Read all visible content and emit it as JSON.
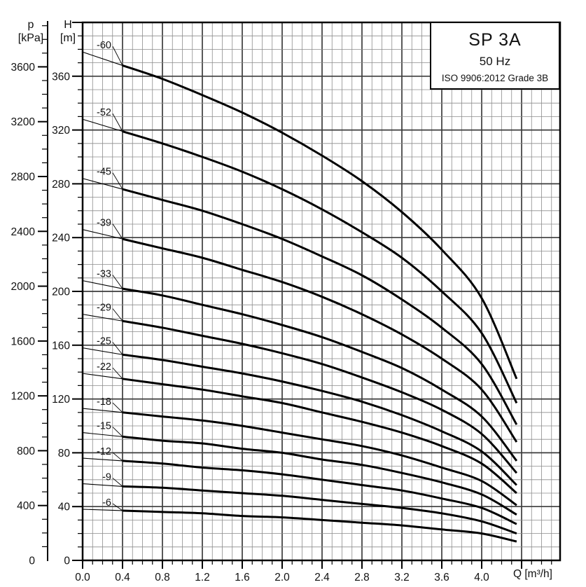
{
  "axes_headers": {
    "pressure_symbol": "p",
    "pressure_unit": "[kPa]",
    "head_symbol": "H",
    "head_unit": "[m]"
  },
  "title_box": {
    "model": "SP 3A",
    "frequency": "50 Hz",
    "standard": "ISO 9906:2012 Grade 3B"
  },
  "chart_data": {
    "type": "line",
    "title": "SP 3A 50 Hz pump performance curves (head vs flow)",
    "xlabel": "Q [m³/h]",
    "ylabel_outer": "p [kPa]",
    "ylabel_inner": "H [m]",
    "grid": "major+minor",
    "legend_position": "labels-on-curves",
    "xlim": [
      0,
      4.78
    ],
    "x_major_step": 0.4,
    "x_minor_step": 0.1,
    "x_last_major_tick": 4.4,
    "head_axis_lim_m": [
      0,
      400
    ],
    "head_major_step_m": 40,
    "head_minor_step_m": 10,
    "pressure_axis_lim_kPa": [
      0,
      3923
    ],
    "pressure_major_step_kPa": 400,
    "pressure_minor_step_kPa": 100,
    "x_tick_labels": [
      "0.0",
      "0.4",
      "0.8",
      "1.2",
      "1.6",
      "2.0",
      "2.4",
      "2.8",
      "3.2",
      "3.6",
      "4.0"
    ],
    "pressure_tick_labels": [
      "0",
      "400",
      "800",
      "1200",
      "1600",
      "2000",
      "2400",
      "2800",
      "3200",
      "3600"
    ],
    "head_tick_labels": [
      "0",
      "40",
      "80",
      "120",
      "160",
      "200",
      "240",
      "280",
      "320",
      "360"
    ],
    "flow_m3h": [
      0,
      0.4,
      0.8,
      1.2,
      1.6,
      2.0,
      2.4,
      2.8,
      3.2,
      3.6,
      4.0,
      4.35
    ],
    "thin_segment_end_flow": 0.4,
    "curves": [
      {
        "label": "-60",
        "stages": 60,
        "head_m": [
          378,
          368,
          358,
          346,
          333,
          318,
          301,
          282,
          259,
          231,
          195,
          135
        ]
      },
      {
        "label": "-52",
        "stages": 52,
        "head_m": [
          328,
          319,
          310,
          300,
          289,
          276,
          261,
          244,
          225,
          200,
          169,
          117
        ]
      },
      {
        "label": "-45",
        "stages": 45,
        "head_m": [
          284,
          276,
          268,
          260,
          250,
          239,
          226,
          212,
          194,
          173,
          146,
          101
        ]
      },
      {
        "label": "-39",
        "stages": 39,
        "head_m": [
          246,
          239,
          232,
          225,
          216,
          207,
          196,
          183,
          168,
          150,
          127,
          88
        ]
      },
      {
        "label": "-33",
        "stages": 33,
        "head_m": [
          208,
          202,
          197,
          190,
          183,
          175,
          166,
          155,
          143,
          127,
          107,
          74
        ]
      },
      {
        "label": "-29",
        "stages": 29,
        "head_m": [
          183,
          178,
          173,
          167,
          161,
          154,
          146,
          136,
          125,
          112,
          94,
          65
        ]
      },
      {
        "label": "-25",
        "stages": 25,
        "head_m": [
          158,
          153,
          149,
          144,
          139,
          133,
          126,
          118,
          108,
          96,
          81,
          56
        ]
      },
      {
        "label": "-22",
        "stages": 22,
        "head_m": [
          139,
          135,
          131,
          127,
          122,
          117,
          110,
          103,
          95,
          85,
          72,
          50
        ]
      },
      {
        "label": "-18",
        "stages": 18,
        "head_m": [
          113,
          110,
          107,
          104,
          100,
          95,
          90,
          85,
          78,
          69,
          59,
          41
        ]
      },
      {
        "label": "-15",
        "stages": 15,
        "head_m": [
          95,
          92,
          89,
          87,
          83,
          80,
          75,
          71,
          65,
          58,
          49,
          34
        ]
      },
      {
        "label": "-12",
        "stages": 12,
        "head_m": [
          76,
          74,
          72,
          69,
          67,
          64,
          60,
          56,
          52,
          46,
          39,
          27
        ]
      },
      {
        "label": "-9",
        "stages": 9,
        "head_m": [
          57,
          55,
          54,
          52,
          50,
          48,
          45,
          42,
          39,
          35,
          29,
          20
        ]
      },
      {
        "label": "-6",
        "stages": 6,
        "head_m": [
          38,
          37,
          36,
          35,
          33,
          32,
          30,
          28,
          26,
          23,
          20,
          14
        ]
      }
    ]
  }
}
